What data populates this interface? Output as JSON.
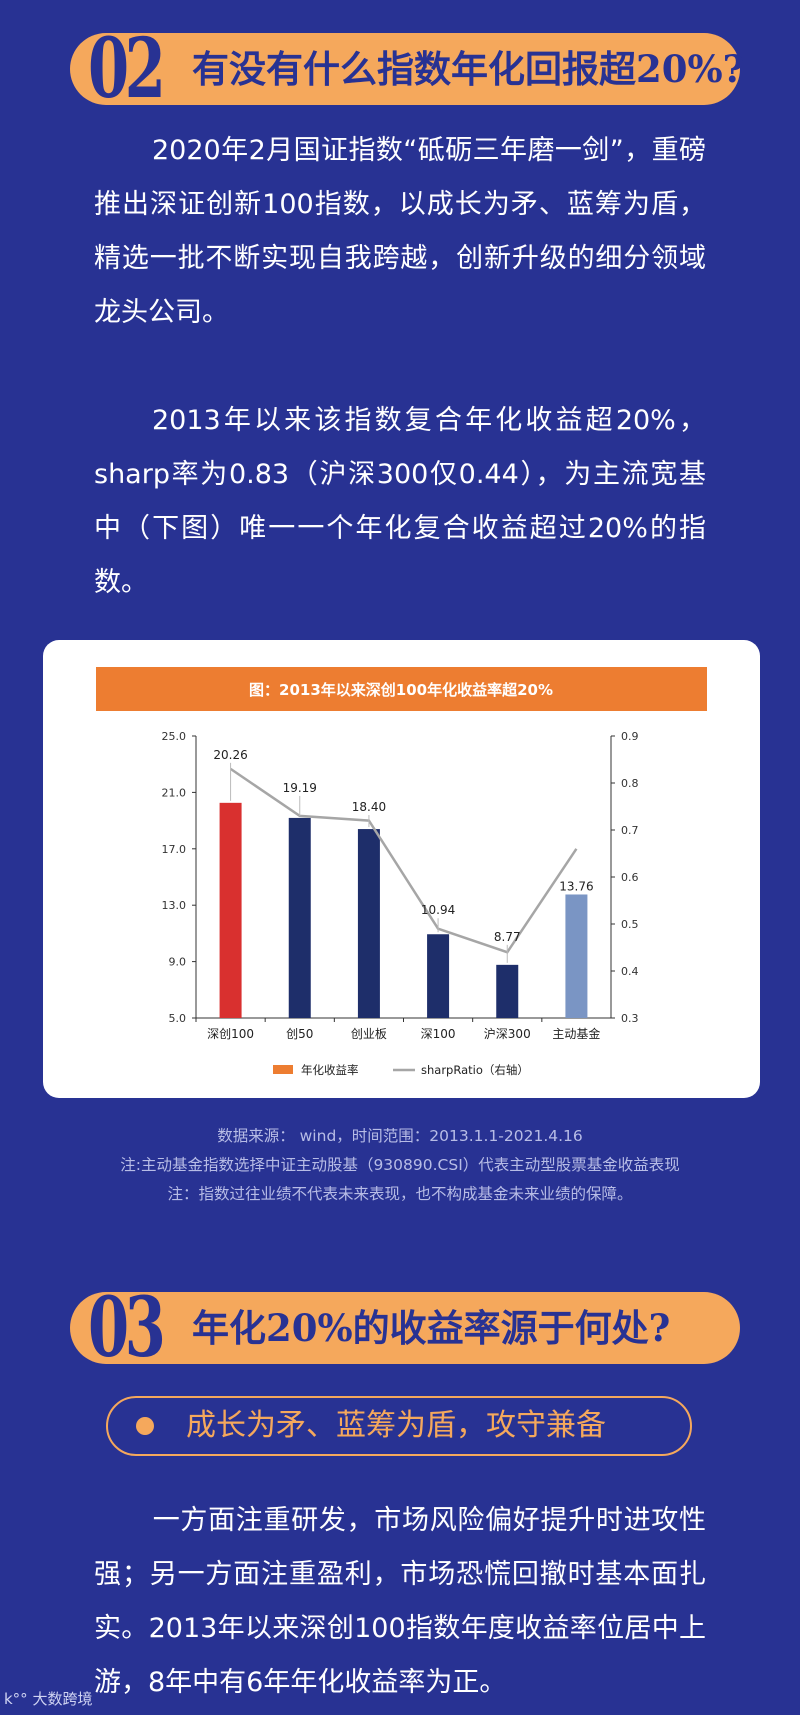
{
  "section2": {
    "number": "02",
    "title": "有没有什么指数年化回报超20%?"
  },
  "paragraphs1": [
    "2020年2月国证指数“砥砺三年磨一剑”，重磅推出深证创新100指数，以成长为矛、蓝筹为盾，精选一批不断实现自我跨越，创新升级的细分领域龙头公司。",
    "2013年以来该指数复合年化收益超20%，sharp率为0.83（沪深300仅0.44），为主流宽基中（下图）唯一一个年化复合收益超过20%的指数。"
  ],
  "chart_data": {
    "type": "bar",
    "title": "图：2013年以来深创100年化收益率超20%",
    "categories": [
      "深创100",
      "创50",
      "创业板",
      "深100",
      "沪深300",
      "主动基金"
    ],
    "series": [
      {
        "name": "年化收益率",
        "type": "bar",
        "axis": "left",
        "values": [
          20.26,
          19.19,
          18.4,
          10.94,
          8.77,
          13.76
        ]
      },
      {
        "name": "sharpRatio（右轴）",
        "type": "line",
        "axis": "right",
        "values": [
          0.83,
          0.73,
          0.72,
          0.49,
          0.44,
          0.66
        ]
      }
    ],
    "data_labels": [
      "20.26",
      "19.19",
      "18.40",
      "10.94",
      "8.77",
      "13.76"
    ],
    "left_axis": {
      "min": 5.0,
      "max": 25.0,
      "ticks": [
        "25.0",
        "21.0",
        "17.0",
        "13.0",
        "9.0",
        "5.0"
      ]
    },
    "right_axis": {
      "min": 0.3,
      "max": 0.9,
      "ticks": [
        "0.9",
        "0.8",
        "0.7",
        "0.6",
        "0.5",
        "0.4",
        "0.3"
      ]
    },
    "legend_position": "bottom",
    "colors": {
      "title_bar": "#ed7d31",
      "bar_first": "#d9302f",
      "bar_normal": "#1e2e6a",
      "bar_last": "#7a95c4",
      "line": "#a6a6a6",
      "legend_bar": "#ed7d31"
    }
  },
  "notes": [
    "数据来源： wind，时间范围：2013.1.1-2021.4.16",
    "注:主动基金指数选择中证主动股基（930890.CSI）代表主动型股票基金收益表现",
    "注：指数过往业绩不代表未来表现，也不构成基金未来业绩的保障。"
  ],
  "section3": {
    "number": "03",
    "title": "年化20%的收益率源于何处?",
    "subtitle": "成长为矛、蓝筹为盾，攻守兼备",
    "paragraph": "一方面注重研发，市场风险偏好提升时进攻性强；另一方面注重盈利，市场恐慌回撤时基本面扎实。2013年以来深创100指数年度收益率位居中上游，8年中有6年年化收益率为正。"
  },
  "watermark": "大数跨境",
  "colors": {
    "background": "#283293",
    "accent": "#f5a85c"
  }
}
